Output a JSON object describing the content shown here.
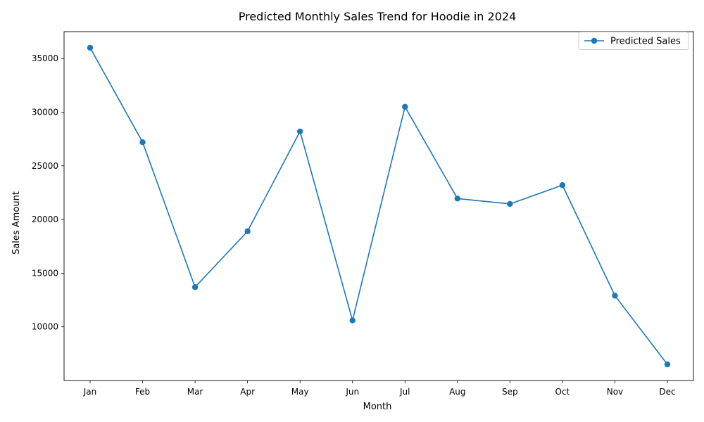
{
  "chart_data": {
    "type": "line",
    "title": "Predicted Monthly Sales Trend for Hoodie in 2024",
    "xlabel": "Month",
    "ylabel": "Sales Amount",
    "categories": [
      "Jan",
      "Feb",
      "Mar",
      "Apr",
      "May",
      "Jun",
      "Jul",
      "Aug",
      "Sep",
      "Oct",
      "Nov",
      "Dec"
    ],
    "series": [
      {
        "name": "Predicted Sales",
        "values": [
          36000,
          27200,
          13700,
          18900,
          28200,
          10600,
          30500,
          21950,
          21450,
          23200,
          12900,
          6500
        ],
        "color": "#1f77b4",
        "marker": "circle"
      }
    ],
    "ylim": [
      5000,
      37500
    ],
    "yticks": [
      10000,
      15000,
      20000,
      25000,
      30000,
      35000
    ],
    "grid": false,
    "legend": "upper right"
  }
}
